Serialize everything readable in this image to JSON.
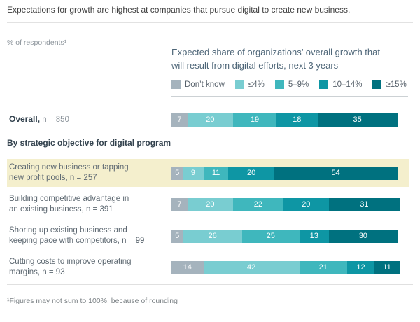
{
  "title": "Expectations for growth are highest at companies that pursue digital to create new business.",
  "axis_note": "% of respondents¹",
  "chart_header": {
    "line1": "Expected share of organizations’ overall growth that",
    "line2": "will result from digital efforts, next 3 years"
  },
  "section_header": "By strategic objective for digital program",
  "footnote": "¹Figures may not sum to 100%, because of rounding",
  "colors": {
    "highlight_row": "#f4efcd",
    "dont_know": "#a5b3bd",
    "le_4pct": "#79cdd1",
    "5_9pct": "#3fb7bd",
    "10_14pct": "#0e96a4",
    "ge_15pct": "#00717f"
  },
  "chart_data": {
    "type": "bar",
    "stacked": true,
    "orientation": "horizontal",
    "unit": "% of respondents",
    "legend": [
      {
        "label": "Don’t know",
        "color": "#a5b3bd"
      },
      {
        "label": "≤4%",
        "color": "#79cdd1"
      },
      {
        "label": "5–9%",
        "color": "#3fb7bd"
      },
      {
        "label": "10–14%",
        "color": "#0e96a4"
      },
      {
        "label": "≥15%",
        "color": "#00717f"
      }
    ],
    "overall": {
      "label_bold": "Overall,",
      "label_normal": "n = 850",
      "values": [
        7,
        20,
        19,
        18,
        35
      ]
    },
    "by_objective": [
      {
        "label_lines": [
          "Creating new business or tapping",
          "new profit pools, n = 257"
        ],
        "values": [
          5,
          9,
          11,
          20,
          54
        ],
        "highlight": true
      },
      {
        "label_lines": [
          "Building competitive advantage in",
          "an existing business, n = 391"
        ],
        "values": [
          7,
          20,
          22,
          20,
          31
        ],
        "highlight": false
      },
      {
        "label_lines": [
          "Shoring up existing business and",
          "keeping pace with competitors, n = 99"
        ],
        "values": [
          5,
          26,
          25,
          13,
          30
        ],
        "highlight": false
      },
      {
        "label_lines": [
          "Cutting costs to improve operating",
          "margins, n = 93"
        ],
        "values": [
          14,
          42,
          21,
          12,
          11
        ],
        "highlight": false
      }
    ]
  }
}
